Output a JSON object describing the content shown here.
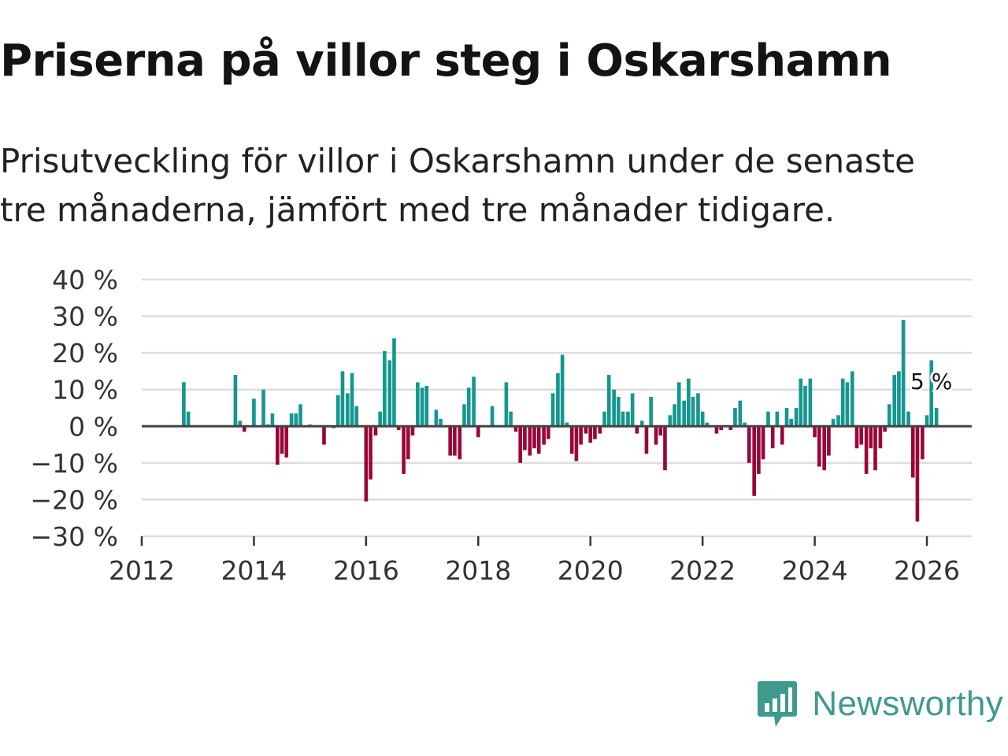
{
  "title": "Priserna på villor steg i Oskarshamn",
  "subtitle": "Prisutveckling för villor i Oskarshamn under de senaste tre månaderna, jämfört med tre månader tidigare.",
  "brand": {
    "name": "Newsworthy",
    "color": "#3f9a8e"
  },
  "colors": {
    "positive": "#13978f",
    "negative": "#9a0539",
    "zero_line": "#444444",
    "grid": "#dddddd"
  },
  "chart_data": {
    "type": "bar",
    "title": "Priserna på villor steg i Oskarshamn",
    "xlabel": "",
    "ylabel": "",
    "y_unit": " %",
    "ylim": [
      -30,
      40
    ],
    "yticks": [
      40,
      30,
      20,
      10,
      0,
      -10,
      -20,
      -30
    ],
    "ytick_labels": [
      "40 %",
      "30 %",
      "20 %",
      "10 %",
      "0 %",
      "−10 %",
      "−20 %",
      "−30 %"
    ],
    "xlim": [
      2012,
      2026.8
    ],
    "xticks": [
      2012,
      2014,
      2016,
      2018,
      2020,
      2022,
      2024,
      2026
    ],
    "xtick_labels": [
      "2012",
      "2014",
      "2016",
      "2018",
      "2020",
      "2022",
      "2024",
      "2026"
    ],
    "grid": true,
    "annotation": {
      "text": "5 %",
      "x": 2026.17,
      "y": 5
    },
    "series": [
      {
        "name": "Prisutveckling",
        "x": [
          2012.75,
          2012.83,
          2012.92,
          2013.0,
          2013.08,
          2013.17,
          2013.25,
          2013.33,
          2013.42,
          2013.5,
          2013.58,
          2013.67,
          2013.75,
          2013.83,
          2013.92,
          2014.0,
          2014.08,
          2014.17,
          2014.25,
          2014.33,
          2014.42,
          2014.5,
          2014.58,
          2014.67,
          2014.75,
          2014.83,
          2014.92,
          2015.0,
          2015.08,
          2015.17,
          2015.25,
          2015.33,
          2015.42,
          2015.5,
          2015.58,
          2015.67,
          2015.75,
          2015.83,
          2015.92,
          2016.0,
          2016.08,
          2016.17,
          2016.25,
          2016.33,
          2016.42,
          2016.5,
          2016.58,
          2016.67,
          2016.75,
          2016.83,
          2016.92,
          2017.0,
          2017.08,
          2017.17,
          2017.25,
          2017.33,
          2017.42,
          2017.5,
          2017.58,
          2017.67,
          2017.75,
          2017.83,
          2017.92,
          2018.0,
          2018.08,
          2018.17,
          2018.25,
          2018.33,
          2018.42,
          2018.5,
          2018.58,
          2018.67,
          2018.75,
          2018.83,
          2018.92,
          2019.0,
          2019.08,
          2019.17,
          2019.25,
          2019.33,
          2019.42,
          2019.5,
          2019.58,
          2019.67,
          2019.75,
          2019.83,
          2019.92,
          2020.0,
          2020.08,
          2020.17,
          2020.25,
          2020.33,
          2020.42,
          2020.5,
          2020.58,
          2020.67,
          2020.75,
          2020.83,
          2020.92,
          2021.0,
          2021.08,
          2021.17,
          2021.25,
          2021.33,
          2021.42,
          2021.5,
          2021.58,
          2021.67,
          2021.75,
          2021.83,
          2021.92,
          2022.0,
          2022.08,
          2022.17,
          2022.25,
          2022.33,
          2022.42,
          2022.5,
          2022.58,
          2022.67,
          2022.75,
          2022.83,
          2022.92,
          2023.0,
          2023.08,
          2023.17,
          2023.25,
          2023.33,
          2023.42,
          2023.5,
          2023.58,
          2023.67,
          2023.75,
          2023.83,
          2023.92,
          2024.0,
          2024.08,
          2024.17,
          2024.25,
          2024.33,
          2024.42,
          2024.5,
          2024.58,
          2024.67,
          2024.75,
          2024.83,
          2024.92,
          2025.0,
          2025.08,
          2025.17,
          2025.25,
          2025.33,
          2025.42,
          2025.5,
          2025.58,
          2025.67,
          2025.75,
          2025.83,
          2025.92,
          2026.0,
          2026.08,
          2026.17
        ],
        "values": [
          12,
          4,
          0,
          0,
          0,
          0,
          0,
          0,
          0,
          0,
          0,
          14,
          1.5,
          -1.5,
          0,
          7.5,
          0,
          10,
          0.5,
          3.5,
          -10.5,
          -7.5,
          -8.5,
          3.5,
          3.5,
          6,
          0,
          0.5,
          0,
          0,
          -5,
          0,
          -0.5,
          8.5,
          15,
          9,
          14.5,
          5.5,
          0,
          -20.5,
          -14.5,
          -2.5,
          4,
          20.5,
          18,
          24,
          -1,
          -13,
          -9,
          -2.5,
          12,
          10.5,
          11,
          0,
          4.5,
          2,
          0,
          -8,
          -8,
          -9,
          6,
          10.5,
          13.5,
          -3,
          0,
          0,
          5.5,
          0,
          0,
          12,
          4,
          -1.5,
          -10,
          -6.5,
          -8,
          -6,
          -7.5,
          -5,
          -3.5,
          9,
          14.5,
          19.5,
          1,
          -7.5,
          -9.5,
          -5,
          -2,
          -4.5,
          -3.5,
          -2,
          4,
          14,
          10,
          8,
          4,
          4,
          9,
          -2,
          1.5,
          -7.5,
          8,
          -5,
          -2.5,
          -12,
          3,
          6,
          12,
          7,
          13,
          8,
          9,
          4,
          1,
          0,
          -2,
          -1,
          0,
          -1,
          5,
          7,
          1,
          -10,
          -19,
          -13,
          -9,
          4,
          -6,
          4,
          -5,
          5,
          2,
          5,
          13,
          11,
          13,
          -3,
          -11,
          -12,
          -8,
          2,
          3,
          13,
          12,
          15,
          -6,
          -5,
          -13,
          -6,
          -12,
          -6,
          -1.5,
          6,
          14,
          15,
          29,
          4,
          -14,
          -26,
          -9,
          3,
          18,
          5
        ]
      }
    ]
  }
}
